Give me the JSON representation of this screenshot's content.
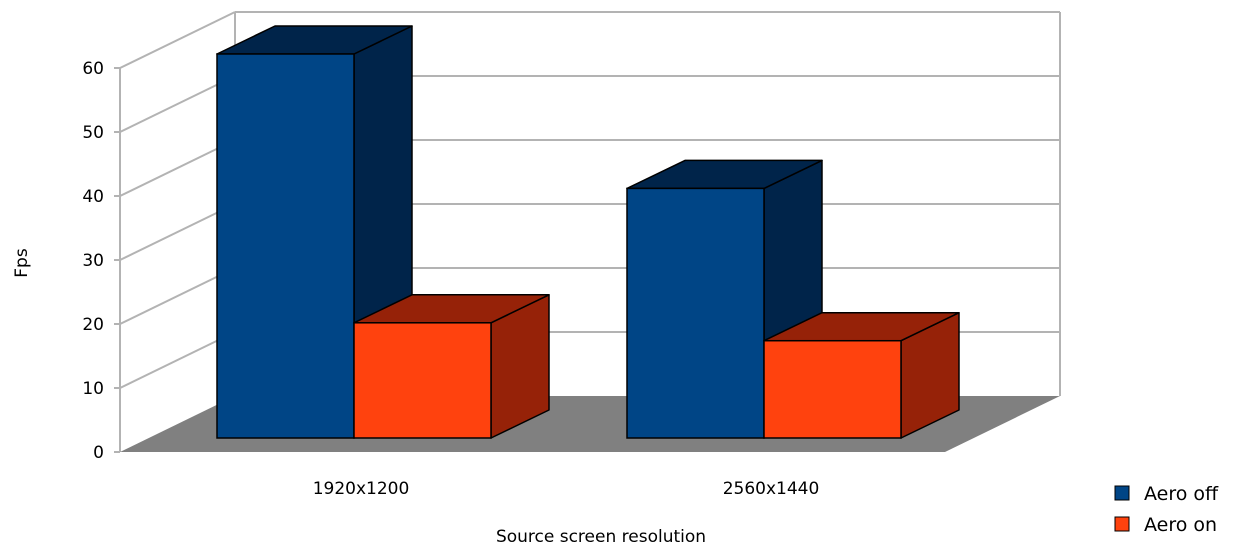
{
  "chart_data": {
    "type": "bar",
    "style": "3d",
    "categories": [
      "1920x1200",
      "2560x1440"
    ],
    "series": [
      {
        "name": "Aero off",
        "values": [
          60,
          39
        ],
        "color": "#004586",
        "side_color": "#00244a"
      },
      {
        "name": "Aero on",
        "values": [
          18,
          15.2
        ],
        "color": "#ff420e",
        "side_color": "#962208"
      }
    ],
    "title": "",
    "xlabel": "Source screen resolution",
    "ylabel": "Fps",
    "ylim": [
      0,
      60
    ],
    "yticks": [
      0,
      10,
      20,
      30,
      40,
      50,
      60
    ],
    "grid": true,
    "legend_position": "bottom-right",
    "colors": {
      "grid": "#b3b3b3",
      "floor": "#808080",
      "bar_outline": "#000000"
    }
  }
}
